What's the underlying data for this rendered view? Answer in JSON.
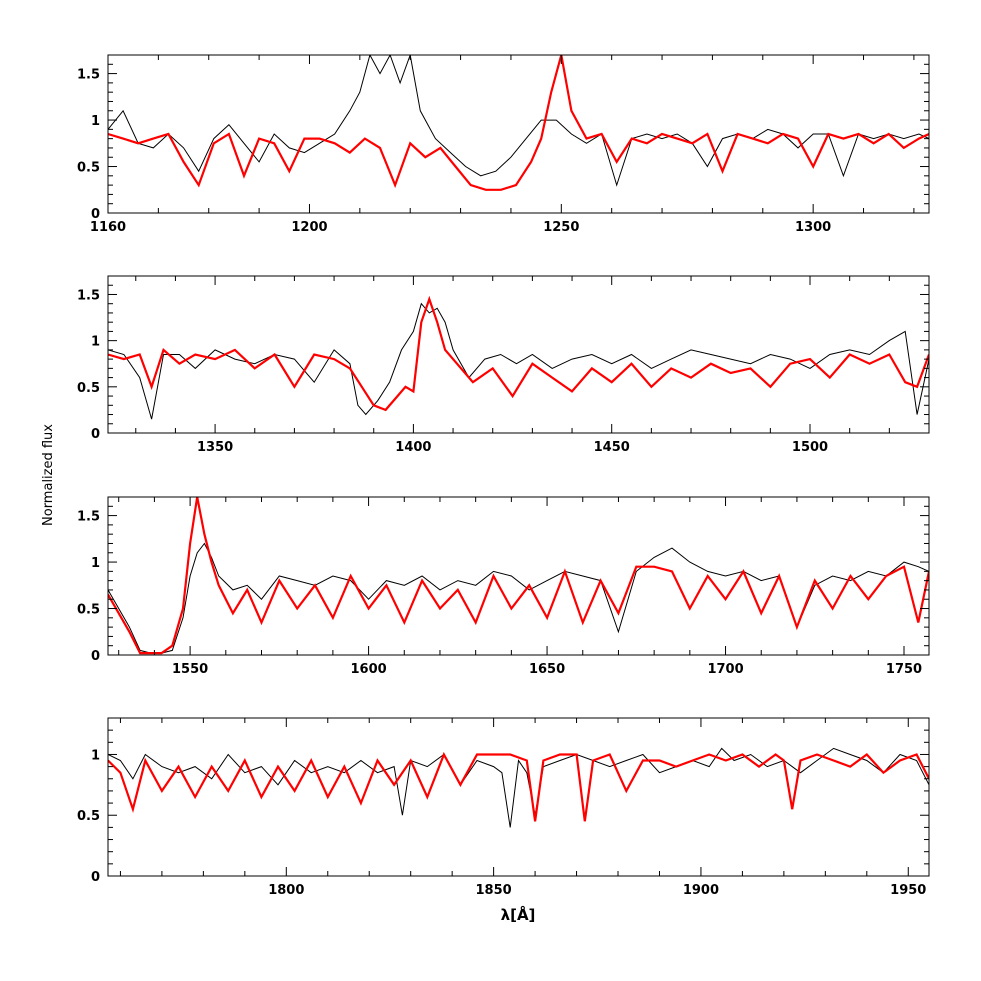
{
  "chart_data": {
    "type": "line",
    "ylabel": "Normalized flux",
    "xlabel": "λ[Å]",
    "colors": {
      "observed": "#000000",
      "model": "#ff0000"
    },
    "panels": [
      {
        "xlim": [
          1160,
          1323
        ],
        "ylim": [
          0,
          1.7
        ],
        "xticks": [
          1160,
          1200,
          1250,
          1300
        ],
        "yticks": [
          0,
          0.5,
          1,
          1.5
        ],
        "series": [
          {
            "id": "observed",
            "x": [
              1160,
              1163,
              1166,
              1169,
              1172,
              1175,
              1178,
              1181,
              1184,
              1187,
              1190,
              1193,
              1196,
              1199,
              1202,
              1205,
              1208,
              1210,
              1212,
              1214,
              1216,
              1218,
              1220,
              1222,
              1225,
              1228,
              1231,
              1234,
              1237,
              1240,
              1243,
              1246,
              1249,
              1252,
              1255,
              1258,
              1261,
              1264,
              1267,
              1270,
              1273,
              1276,
              1279,
              1282,
              1285,
              1288,
              1291,
              1294,
              1297,
              1300,
              1303,
              1306,
              1309,
              1312,
              1315,
              1318,
              1321,
              1323
            ],
            "y": [
              0.9,
              1.1,
              0.75,
              0.7,
              0.85,
              0.7,
              0.45,
              0.8,
              0.95,
              0.75,
              0.55,
              0.85,
              0.7,
              0.65,
              0.75,
              0.85,
              1.1,
              1.3,
              1.7,
              1.5,
              1.7,
              1.4,
              1.7,
              1.1,
              0.8,
              0.65,
              0.5,
              0.4,
              0.45,
              0.6,
              0.8,
              1.0,
              1.0,
              0.85,
              0.75,
              0.85,
              0.3,
              0.8,
              0.85,
              0.8,
              0.85,
              0.75,
              0.5,
              0.8,
              0.85,
              0.8,
              0.9,
              0.85,
              0.7,
              0.85,
              0.85,
              0.4,
              0.85,
              0.8,
              0.85,
              0.8,
              0.85,
              0.8
            ]
          },
          {
            "id": "model",
            "x": [
              1160,
              1163,
              1166,
              1169,
              1172,
              1175,
              1178,
              1181,
              1184,
              1187,
              1190,
              1193,
              1196,
              1199,
              1202,
              1205,
              1208,
              1211,
              1214,
              1217,
              1220,
              1223,
              1226,
              1229,
              1232,
              1235,
              1238,
              1241,
              1244,
              1246,
              1248,
              1250,
              1252,
              1255,
              1258,
              1261,
              1264,
              1267,
              1270,
              1273,
              1276,
              1279,
              1282,
              1285,
              1288,
              1291,
              1294,
              1297,
              1300,
              1303,
              1306,
              1309,
              1312,
              1315,
              1318,
              1321,
              1323
            ],
            "y": [
              0.85,
              0.8,
              0.75,
              0.8,
              0.85,
              0.55,
              0.3,
              0.75,
              0.85,
              0.4,
              0.8,
              0.75,
              0.45,
              0.8,
              0.8,
              0.75,
              0.65,
              0.8,
              0.7,
              0.3,
              0.75,
              0.6,
              0.7,
              0.5,
              0.3,
              0.25,
              0.25,
              0.3,
              0.55,
              0.8,
              1.3,
              1.7,
              1.1,
              0.8,
              0.85,
              0.55,
              0.8,
              0.75,
              0.85,
              0.8,
              0.75,
              0.85,
              0.45,
              0.85,
              0.8,
              0.75,
              0.85,
              0.8,
              0.5,
              0.85,
              0.8,
              0.85,
              0.75,
              0.85,
              0.7,
              0.8,
              0.85
            ]
          }
        ]
      },
      {
        "xlim": [
          1323,
          1530
        ],
        "ylim": [
          0,
          1.7
        ],
        "xticks": [
          1350,
          1400,
          1450,
          1500
        ],
        "yticks": [
          0,
          0.5,
          1,
          1.5
        ],
        "series": [
          {
            "id": "observed",
            "x": [
              1323,
              1327,
              1331,
              1334,
              1337,
              1341,
              1345,
              1350,
              1355,
              1360,
              1365,
              1370,
              1375,
              1380,
              1384,
              1386,
              1388,
              1391,
              1394,
              1397,
              1400,
              1402,
              1404,
              1406,
              1408,
              1410,
              1414,
              1418,
              1422,
              1426,
              1430,
              1435,
              1440,
              1445,
              1450,
              1455,
              1460,
              1465,
              1470,
              1475,
              1480,
              1485,
              1490,
              1495,
              1500,
              1505,
              1510,
              1515,
              1520,
              1524,
              1527,
              1530
            ],
            "y": [
              0.9,
              0.85,
              0.6,
              0.15,
              0.85,
              0.85,
              0.7,
              0.9,
              0.8,
              0.75,
              0.85,
              0.8,
              0.55,
              0.9,
              0.75,
              0.3,
              0.2,
              0.35,
              0.55,
              0.9,
              1.1,
              1.4,
              1.3,
              1.35,
              1.2,
              0.9,
              0.6,
              0.8,
              0.85,
              0.75,
              0.85,
              0.7,
              0.8,
              0.85,
              0.75,
              0.85,
              0.7,
              0.8,
              0.9,
              0.85,
              0.8,
              0.75,
              0.85,
              0.8,
              0.7,
              0.85,
              0.9,
              0.85,
              1.0,
              1.1,
              0.2,
              0.8
            ]
          },
          {
            "id": "model",
            "x": [
              1323,
              1327,
              1331,
              1334,
              1337,
              1341,
              1345,
              1350,
              1355,
              1360,
              1365,
              1370,
              1375,
              1380,
              1384,
              1387,
              1390,
              1393,
              1396,
              1398,
              1400,
              1402,
              1404,
              1406,
              1408,
              1411,
              1415,
              1420,
              1425,
              1430,
              1435,
              1440,
              1445,
              1450,
              1455,
              1460,
              1465,
              1470,
              1475,
              1480,
              1485,
              1490,
              1495,
              1500,
              1505,
              1510,
              1515,
              1520,
              1524,
              1527,
              1530
            ],
            "y": [
              0.85,
              0.8,
              0.85,
              0.5,
              0.9,
              0.75,
              0.85,
              0.8,
              0.9,
              0.7,
              0.85,
              0.5,
              0.85,
              0.8,
              0.7,
              0.5,
              0.3,
              0.25,
              0.4,
              0.5,
              0.45,
              1.2,
              1.45,
              1.2,
              0.9,
              0.75,
              0.55,
              0.7,
              0.4,
              0.75,
              0.6,
              0.45,
              0.7,
              0.55,
              0.75,
              0.5,
              0.7,
              0.6,
              0.75,
              0.65,
              0.7,
              0.5,
              0.75,
              0.8,
              0.6,
              0.85,
              0.75,
              0.85,
              0.55,
              0.5,
              0.85
            ]
          }
        ]
      },
      {
        "xlim": [
          1527,
          1757
        ],
        "ylim": [
          0,
          1.7
        ],
        "xticks": [
          1550,
          1600,
          1650,
          1700,
          1750
        ],
        "yticks": [
          0,
          0.5,
          1,
          1.5
        ],
        "series": [
          {
            "id": "observed",
            "x": [
              1527,
              1530,
              1533,
              1536,
              1539,
              1542,
              1545,
              1548,
              1550,
              1552,
              1554,
              1556,
              1558,
              1562,
              1566,
              1570,
              1575,
              1580,
              1585,
              1590,
              1595,
              1600,
              1605,
              1610,
              1615,
              1620,
              1625,
              1630,
              1635,
              1640,
              1645,
              1650,
              1655,
              1660,
              1665,
              1670,
              1675,
              1680,
              1685,
              1690,
              1695,
              1700,
              1705,
              1710,
              1715,
              1720,
              1725,
              1730,
              1735,
              1740,
              1745,
              1750,
              1754,
              1757
            ],
            "y": [
              0.7,
              0.5,
              0.3,
              0.05,
              0.02,
              0.02,
              0.05,
              0.4,
              0.85,
              1.1,
              1.2,
              1.05,
              0.85,
              0.7,
              0.75,
              0.6,
              0.85,
              0.8,
              0.75,
              0.85,
              0.8,
              0.6,
              0.8,
              0.75,
              0.85,
              0.7,
              0.8,
              0.75,
              0.9,
              0.85,
              0.7,
              0.8,
              0.9,
              0.85,
              0.8,
              0.25,
              0.9,
              1.05,
              1.15,
              1.0,
              0.9,
              0.85,
              0.9,
              0.8,
              0.85,
              0.3,
              0.75,
              0.85,
              0.8,
              0.9,
              0.85,
              1.0,
              0.95,
              0.9
            ]
          },
          {
            "id": "model",
            "x": [
              1527,
              1530,
              1533,
              1536,
              1539,
              1542,
              1545,
              1548,
              1550,
              1552,
              1554,
              1556,
              1558,
              1562,
              1566,
              1570,
              1575,
              1580,
              1585,
              1590,
              1595,
              1600,
              1605,
              1610,
              1615,
              1620,
              1625,
              1630,
              1635,
              1640,
              1645,
              1650,
              1655,
              1660,
              1665,
              1670,
              1675,
              1680,
              1685,
              1690,
              1695,
              1700,
              1705,
              1710,
              1715,
              1720,
              1725,
              1730,
              1735,
              1740,
              1745,
              1750,
              1754,
              1757
            ],
            "y": [
              0.65,
              0.45,
              0.25,
              0.02,
              0.02,
              0.02,
              0.1,
              0.5,
              1.2,
              1.7,
              1.3,
              1.0,
              0.75,
              0.45,
              0.7,
              0.35,
              0.8,
              0.5,
              0.75,
              0.4,
              0.85,
              0.5,
              0.75,
              0.35,
              0.8,
              0.5,
              0.7,
              0.35,
              0.85,
              0.5,
              0.75,
              0.4,
              0.9,
              0.35,
              0.8,
              0.45,
              0.95,
              0.95,
              0.9,
              0.5,
              0.85,
              0.6,
              0.9,
              0.45,
              0.85,
              0.3,
              0.8,
              0.5,
              0.85,
              0.6,
              0.85,
              0.95,
              0.35,
              0.9
            ]
          }
        ]
      },
      {
        "xlim": [
          1757,
          1955
        ],
        "ylim": [
          0,
          1.3
        ],
        "xticks": [
          1800,
          1850,
          1900,
          1950
        ],
        "yticks": [
          0,
          0.5,
          1
        ],
        "series": [
          {
            "id": "observed",
            "x": [
              1757,
              1760,
              1763,
              1766,
              1770,
              1774,
              1778,
              1782,
              1786,
              1790,
              1794,
              1798,
              1802,
              1806,
              1810,
              1814,
              1818,
              1822,
              1826,
              1828,
              1830,
              1834,
              1838,
              1842,
              1846,
              1850,
              1852,
              1854,
              1856,
              1858,
              1860,
              1862,
              1866,
              1870,
              1874,
              1878,
              1882,
              1886,
              1890,
              1894,
              1898,
              1902,
              1905,
              1908,
              1912,
              1916,
              1920,
              1924,
              1928,
              1932,
              1936,
              1940,
              1944,
              1948,
              1952,
              1955
            ],
            "y": [
              1.0,
              0.95,
              0.8,
              1.0,
              0.9,
              0.85,
              0.9,
              0.8,
              1.0,
              0.85,
              0.9,
              0.75,
              0.95,
              0.85,
              0.9,
              0.85,
              0.95,
              0.85,
              0.9,
              0.5,
              0.95,
              0.9,
              1.0,
              0.75,
              0.95,
              0.9,
              0.85,
              0.4,
              0.95,
              0.85,
              0.5,
              0.9,
              0.95,
              1.0,
              0.95,
              0.9,
              0.95,
              1.0,
              0.85,
              0.9,
              0.95,
              0.9,
              1.05,
              0.95,
              1.0,
              0.9,
              0.95,
              0.85,
              0.95,
              1.05,
              1.0,
              0.95,
              0.85,
              1.0,
              0.95,
              0.75
            ]
          },
          {
            "id": "model",
            "x": [
              1757,
              1760,
              1763,
              1766,
              1770,
              1774,
              1778,
              1782,
              1786,
              1790,
              1794,
              1798,
              1802,
              1806,
              1810,
              1814,
              1818,
              1822,
              1826,
              1830,
              1834,
              1838,
              1842,
              1846,
              1850,
              1854,
              1858,
              1860,
              1862,
              1866,
              1870,
              1872,
              1874,
              1878,
              1882,
              1886,
              1890,
              1894,
              1898,
              1902,
              1906,
              1910,
              1914,
              1918,
              1920,
              1922,
              1924,
              1928,
              1932,
              1936,
              1940,
              1944,
              1948,
              1952,
              1955
            ],
            "y": [
              0.95,
              0.85,
              0.55,
              0.95,
              0.7,
              0.9,
              0.65,
              0.9,
              0.7,
              0.95,
              0.65,
              0.9,
              0.7,
              0.95,
              0.65,
              0.9,
              0.6,
              0.95,
              0.75,
              0.95,
              0.65,
              1.0,
              0.75,
              1.0,
              1.0,
              1.0,
              0.95,
              0.45,
              0.95,
              1.0,
              1.0,
              0.45,
              0.95,
              1.0,
              0.7,
              0.95,
              0.95,
              0.9,
              0.95,
              1.0,
              0.95,
              1.0,
              0.9,
              1.0,
              0.95,
              0.55,
              0.95,
              1.0,
              0.95,
              0.9,
              1.0,
              0.85,
              0.95,
              1.0,
              0.8
            ]
          }
        ]
      }
    ]
  }
}
